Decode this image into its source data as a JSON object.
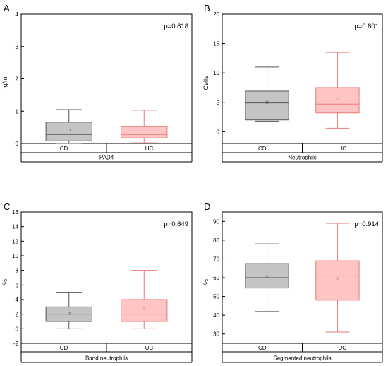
{
  "chart_data": [
    {
      "panel": "A",
      "type": "box",
      "ylabel": "ng/ml",
      "ylim": [
        0,
        4
      ],
      "yticks": [
        0,
        1,
        2,
        3,
        4
      ],
      "pvalue": "p=0.818",
      "group_label": "PAD4",
      "categories": [
        "CD",
        "UC"
      ],
      "boxes": [
        {
          "name": "CD",
          "whisker_low": 0.0,
          "q1": 0.08,
          "median": 0.28,
          "q3": 0.66,
          "whisker_high": 1.05,
          "mean": 0.42,
          "color": "gray"
        },
        {
          "name": "UC",
          "whisker_low": 0.02,
          "q1": 0.17,
          "median": 0.28,
          "q3": 0.52,
          "whisker_high": 1.03,
          "mean": 0.42,
          "color": "red"
        }
      ]
    },
    {
      "panel": "B",
      "type": "box",
      "ylabel": "Cells",
      "ylim": [
        -2,
        20
      ],
      "yticks": [
        0,
        5,
        10,
        15,
        20
      ],
      "pvalue": "p=0.801",
      "group_label": "Neutrophils",
      "categories": [
        "CD",
        "UC"
      ],
      "boxes": [
        {
          "name": "CD",
          "whisker_low": 1.8,
          "q1": 2.0,
          "median": 4.9,
          "q3": 6.9,
          "whisker_high": 11.0,
          "mean": 5.0,
          "color": "gray"
        },
        {
          "name": "UC",
          "whisker_low": 0.6,
          "q1": 3.2,
          "median": 4.7,
          "q3": 7.5,
          "whisker_high": 13.5,
          "mean": 5.6,
          "color": "red"
        }
      ]
    },
    {
      "panel": "C",
      "type": "box",
      "ylabel": "%",
      "ylim": [
        -2,
        16
      ],
      "yticks": [
        -2,
        0,
        2,
        4,
        6,
        8,
        10,
        12,
        14,
        16
      ],
      "pvalue": "p=0.849",
      "group_label": "Band neutrophils",
      "categories": [
        "CD",
        "UC"
      ],
      "boxes": [
        {
          "name": "CD",
          "whisker_low": 0,
          "q1": 1.0,
          "median": 2.0,
          "q3": 3.0,
          "whisker_high": 5.0,
          "mean": 2.1,
          "color": "gray"
        },
        {
          "name": "UC",
          "whisker_low": 0,
          "q1": 1.0,
          "median": 2.0,
          "q3": 4.0,
          "whisker_high": 8.0,
          "mean": 2.7,
          "color": "red"
        }
      ]
    },
    {
      "panel": "D",
      "type": "box",
      "ylabel": "%",
      "ylim": [
        25,
        95
      ],
      "yticks": [
        30,
        40,
        50,
        60,
        70,
        80,
        90
      ],
      "pvalue": "p=0.914",
      "group_label": "Segmented neutrophils",
      "categories": [
        "CD",
        "UC"
      ],
      "boxes": [
        {
          "name": "CD",
          "whisker_low": 42,
          "q1": 54.5,
          "median": 60,
          "q3": 67.5,
          "whisker_high": 78,
          "mean": 60.5,
          "color": "gray"
        },
        {
          "name": "UC",
          "whisker_low": 31,
          "q1": 48,
          "median": 61,
          "q3": 69,
          "whisker_high": 89,
          "mean": 59.5,
          "color": "red"
        }
      ]
    }
  ],
  "colors": {
    "gray_fill": "#c4c4c4",
    "gray_stroke": "#555555",
    "red_fill": "#ffc4c4",
    "red_stroke": "#ee7777"
  }
}
